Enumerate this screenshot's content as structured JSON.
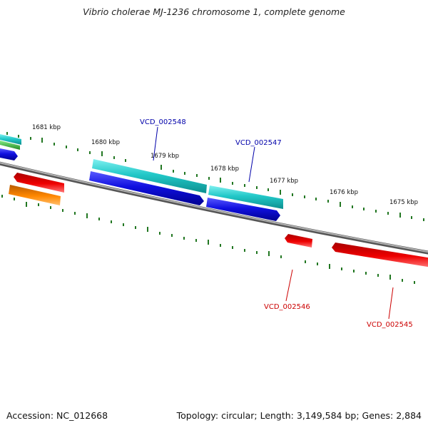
{
  "title": "Vibrio cholerae MJ-1236 chromosome 1, complete genome",
  "footer": {
    "accession": "Accession: NC_012668",
    "summary": "Topology: circular; Length: 3,149,584 bp; Genes: 2,884"
  },
  "kbp_labels": [
    "1681 kbp",
    "1680 kbp",
    "1679 kbp",
    "1678 kbp",
    "1677 kbp",
    "1676 kbp",
    "1675 kbp"
  ],
  "genes": [
    {
      "id": "VCD_002548",
      "color": "#0000aa"
    },
    {
      "id": "VCD_002547",
      "color": "#0000aa"
    },
    {
      "id": "VCD_002546",
      "color": "#cc0000"
    },
    {
      "id": "VCD_002545",
      "color": "#cc0000"
    }
  ],
  "colors": {
    "backbone": "#808080",
    "tick": "#227722",
    "forward_cyan": "#22c8c8",
    "forward_blue": "#1010e0",
    "reverse_red": "#ee0000",
    "reverse_orange": "#ff8800",
    "green": "#33aa33"
  }
}
